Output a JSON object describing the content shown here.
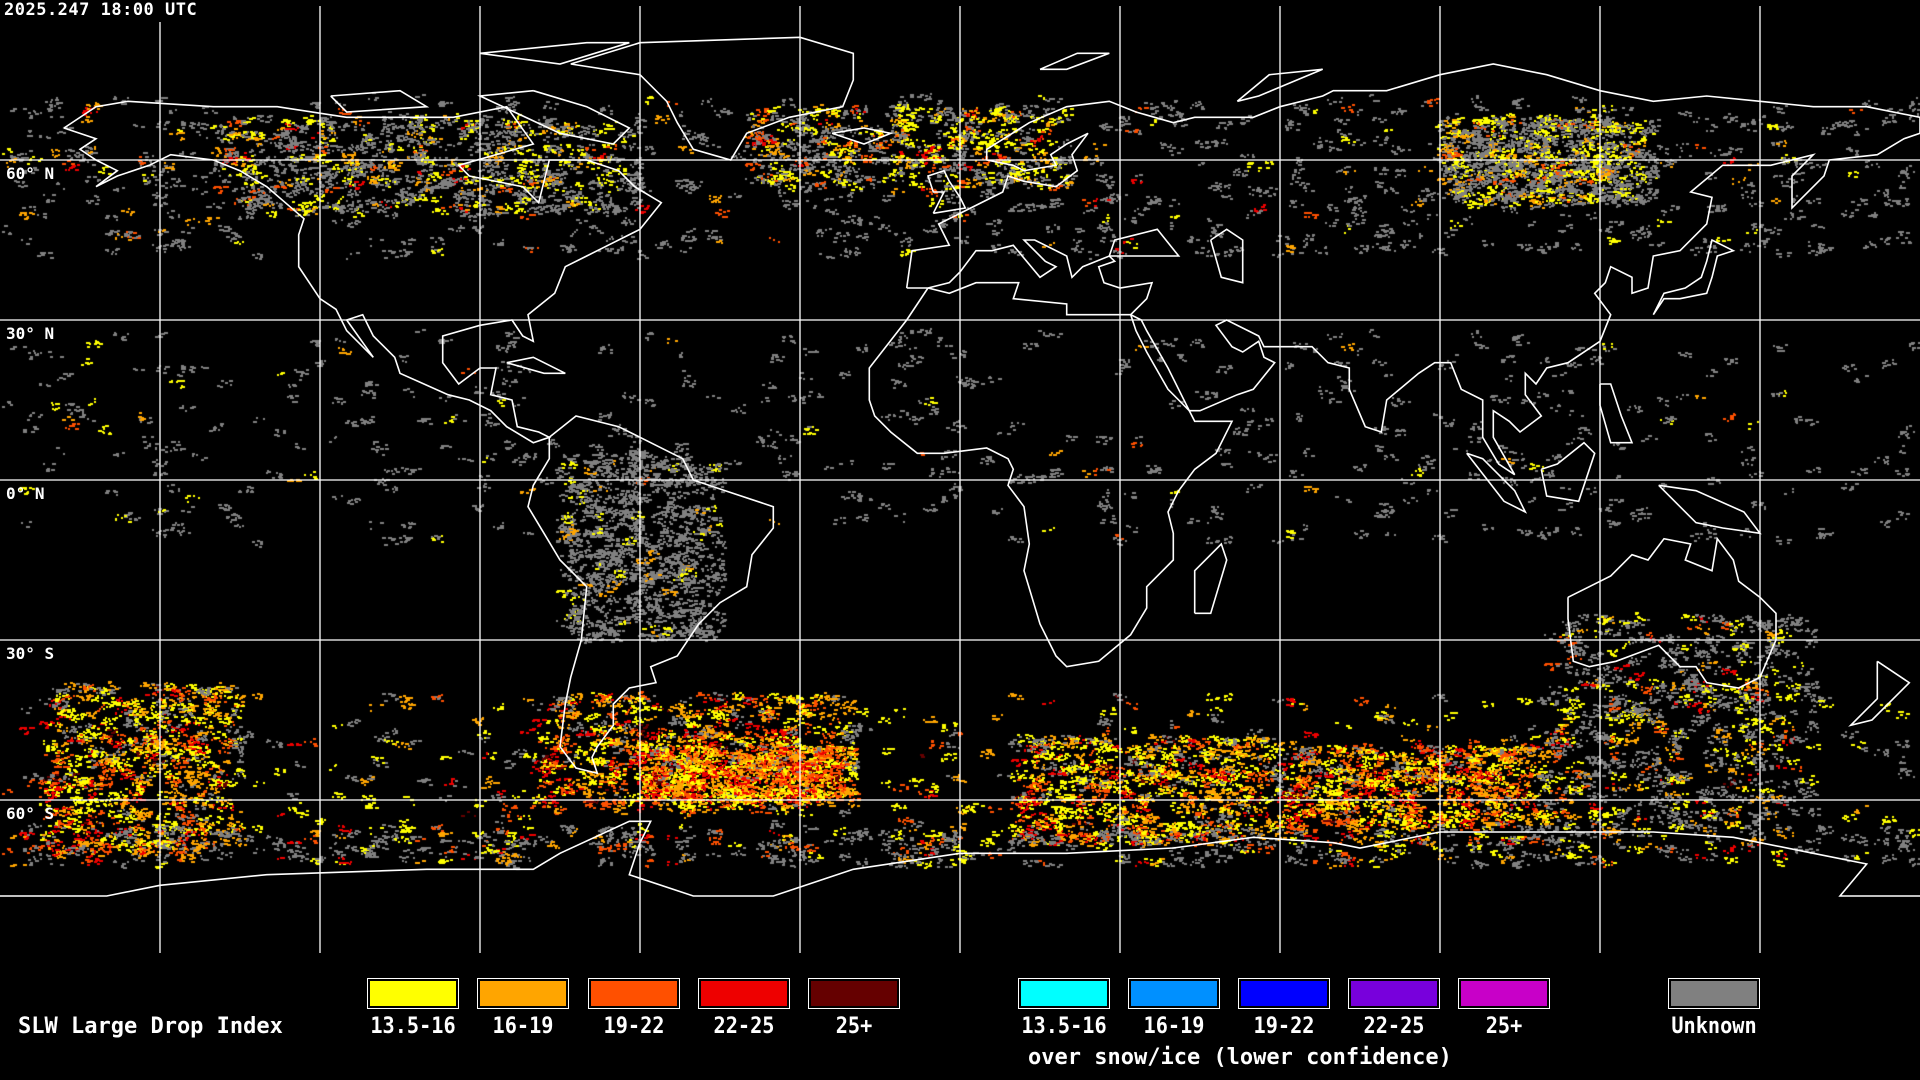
{
  "timestamp": "2025.247 18:00 UTC",
  "map": {
    "projection": "equirectangular",
    "lon_range": [
      -180,
      180
    ],
    "lat_range": [
      -90,
      90
    ],
    "grid_spacing_deg": 30,
    "lat_labels": [
      "60° N",
      "30° N",
      "0° N",
      "30° S",
      "60° S"
    ],
    "coastline_color": "#ffffff",
    "grid_color": "#ffffff",
    "background": "#000000"
  },
  "legend": {
    "title": "SLW Large Drop Index",
    "main": [
      {
        "label": "13.5-16",
        "color": "#ffff00"
      },
      {
        "label": "16-19",
        "color": "#ffa500"
      },
      {
        "label": "19-22",
        "color": "#ff5000"
      },
      {
        "label": "22-25",
        "color": "#ee0000"
      },
      {
        "label": "25+",
        "color": "#650000"
      }
    ],
    "snow_ice": [
      {
        "label": "13.5-16",
        "color": "#00ffff"
      },
      {
        "label": "16-19",
        "color": "#0090ff"
      },
      {
        "label": "19-22",
        "color": "#0000ff"
      },
      {
        "label": "22-25",
        "color": "#7800dc"
      },
      {
        "label": "25+",
        "color": "#c800c8"
      }
    ],
    "snow_ice_caption": "over snow/ice (lower confidence)",
    "unknown": {
      "label": "Unknown",
      "color": "#808080"
    }
  }
}
